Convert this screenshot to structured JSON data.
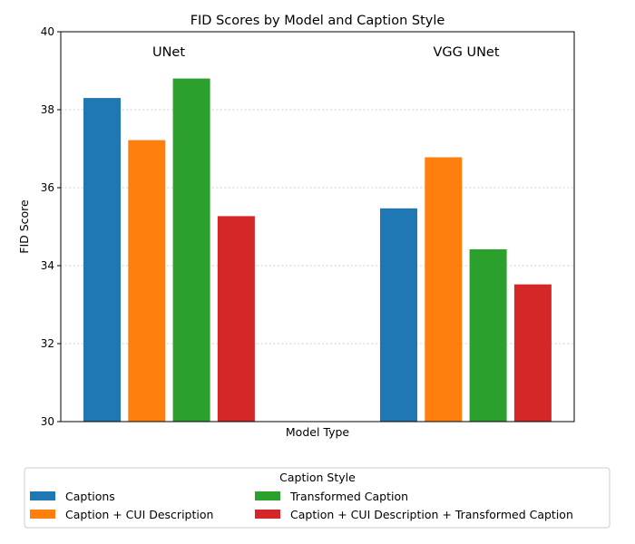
{
  "chart_data": {
    "type": "bar",
    "title": "FID Scores by Model and Caption Style",
    "xlabel": "Model Type",
    "ylabel": "FID Score",
    "ylim": [
      30,
      40
    ],
    "yticks": [
      30,
      32,
      34,
      36,
      38,
      40
    ],
    "grid": "y-dashed",
    "categories": [
      "UNet",
      "VGG UNet"
    ],
    "series": [
      {
        "name": "Captions",
        "color": "#1f77b4",
        "values": [
          38.3,
          35.47
        ]
      },
      {
        "name": "Caption + CUI Description",
        "color": "#ff7f0e",
        "values": [
          37.22,
          36.78
        ]
      },
      {
        "name": "Transformed Caption",
        "color": "#2ca02c",
        "values": [
          38.8,
          34.42
        ]
      },
      {
        "name": "Caption + CUI Description + Transformed Caption",
        "color": "#d62728",
        "values": [
          35.27,
          33.52
        ]
      }
    ],
    "legend": {
      "title": "Caption Style",
      "placement": "bottom-center"
    }
  }
}
